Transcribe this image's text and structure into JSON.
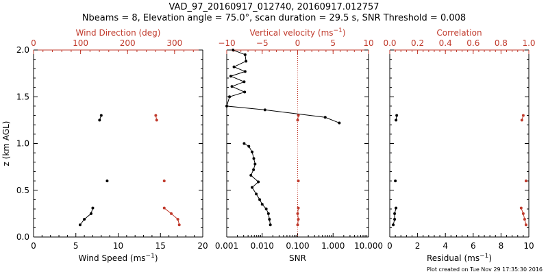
{
  "header": {
    "title": "VAD_97_20160917_012740, 20160917.012757",
    "subtitle": "Nbeams = 8, Elevation angle = 75.0°, scan duration = 29.5 s, SNR Threshold = 0.008"
  },
  "footer": {
    "created": "Plot created on Tue Nov 29 17:35:30 2016"
  },
  "colors": {
    "primary": "#000000",
    "secondary": "#c0392b"
  },
  "chart_data": [
    {
      "type": "scatter",
      "ylabel": "z (km AGL)",
      "ylim": [
        0,
        2
      ],
      "yticks": [
        "0.0",
        "0.5",
        "1.0",
        "1.5",
        "2.0"
      ],
      "bottom_axis": {
        "label": "Wind Speed (ms",
        "label_sup": "−1",
        "label_end": ")",
        "lim": [
          0,
          20
        ],
        "ticks": [
          "0",
          "5",
          "10",
          "15",
          "20"
        ]
      },
      "top_axis": {
        "label": "Wind Direction (deg)",
        "lim": [
          0,
          360
        ],
        "ticks": [
          "0",
          "100",
          "200",
          "300"
        ]
      },
      "series": [
        {
          "axis": "bottom",
          "points": [
            [
              5.5,
              0.13
            ],
            [
              6.0,
              0.19
            ],
            [
              6.8,
              0.25
            ],
            [
              7.0,
              0.31
            ],
            [
              8.7,
              0.6
            ],
            [
              7.8,
              1.25
            ],
            [
              8.0,
              1.3
            ]
          ],
          "segments": [
            [
              0,
              3
            ],
            [
              5,
              6
            ]
          ]
        },
        {
          "axis": "top",
          "points": [
            [
              310,
              0.13
            ],
            [
              307,
              0.19
            ],
            [
              293,
              0.25
            ],
            [
              278,
              0.31
            ],
            [
              278,
              0.6
            ],
            [
              262,
              1.25
            ],
            [
              260,
              1.3
            ]
          ],
          "segments": [
            [
              0,
              3
            ],
            [
              5,
              6
            ]
          ]
        }
      ]
    },
    {
      "type": "line",
      "ylim": [
        0,
        2
      ],
      "bottom_axis": {
        "label": "SNR",
        "scale": "log",
        "lim": [
          0.001,
          10
        ],
        "ticks": [
          "0.001",
          "0.010",
          "0.100",
          "1.000",
          "10.000"
        ]
      },
      "top_axis": {
        "label": "Vertical velocity (ms",
        "label_sup": "−1",
        "label_end": ")",
        "lim": [
          -10,
          10
        ],
        "ticks": [
          "−10",
          "−5",
          "0",
          "5",
          "10"
        ]
      },
      "reference_line": {
        "axis": "top",
        "value": 0,
        "style": "dotted"
      },
      "series": [
        {
          "axis": "bottom",
          "points": [
            [
              0.0015,
              2.0
            ],
            [
              0.0033,
              1.95
            ],
            [
              0.0035,
              1.88
            ],
            [
              0.0016,
              1.82
            ],
            [
              0.0033,
              1.77
            ],
            [
              0.0013,
              1.72
            ],
            [
              0.0031,
              1.66
            ],
            [
              0.0014,
              1.61
            ],
            [
              0.0032,
              1.55
            ],
            [
              0.0012,
              1.5
            ],
            [
              0.001,
              1.4
            ],
            [
              0.012,
              1.36
            ],
            [
              0.6,
              1.28
            ],
            [
              1.5,
              1.22
            ],
            [
              0.0031,
              1.0
            ],
            [
              0.0042,
              0.97
            ],
            [
              0.0052,
              0.91
            ],
            [
              0.0058,
              0.84
            ],
            [
              0.0063,
              0.78
            ],
            [
              0.0057,
              0.72
            ],
            [
              0.0048,
              0.66
            ],
            [
              0.0078,
              0.59
            ],
            [
              0.0052,
              0.53
            ],
            [
              0.0068,
              0.46
            ],
            [
              0.0085,
              0.4
            ],
            [
              0.01,
              0.35
            ],
            [
              0.013,
              0.3
            ],
            [
              0.015,
              0.25
            ],
            [
              0.016,
              0.19
            ],
            [
              0.017,
              0.13
            ]
          ],
          "segments": [
            [
              0,
              13
            ],
            [
              14,
              29
            ]
          ]
        },
        {
          "axis": "top",
          "points": [
            [
              0.1,
              1.3
            ],
            [
              0.0,
              1.25
            ],
            [
              0.1,
              0.6
            ],
            [
              0.1,
              0.31
            ],
            [
              0.0,
              0.25
            ],
            [
              0.1,
              0.19
            ],
            [
              0.0,
              0.13
            ]
          ],
          "segments": [
            [
              0,
              1
            ],
            [
              3,
              6
            ]
          ]
        }
      ]
    },
    {
      "type": "scatter",
      "ylim": [
        0,
        2
      ],
      "bottom_axis": {
        "label": "Residual (ms",
        "label_sup": "−1",
        "label_end": ")",
        "lim": [
          0,
          10
        ],
        "ticks": [
          "0",
          "2",
          "4",
          "6",
          "8",
          "10"
        ]
      },
      "top_axis": {
        "label": "Correlation",
        "lim": [
          0,
          1
        ],
        "ticks": [
          "0.0",
          "0.2",
          "0.4",
          "0.6",
          "0.8",
          "1.0"
        ]
      },
      "series": [
        {
          "axis": "bottom",
          "points": [
            [
              0.25,
              0.13
            ],
            [
              0.35,
              0.19
            ],
            [
              0.35,
              0.25
            ],
            [
              0.45,
              0.31
            ],
            [
              0.4,
              0.6
            ],
            [
              0.45,
              1.25
            ],
            [
              0.5,
              1.3
            ]
          ],
          "segments": [
            [
              0,
              3
            ],
            [
              5,
              6
            ]
          ]
        },
        {
          "axis": "top",
          "points": [
            [
              0.98,
              0.13
            ],
            [
              0.97,
              0.19
            ],
            [
              0.96,
              0.25
            ],
            [
              0.945,
              0.31
            ],
            [
              0.98,
              0.6
            ],
            [
              0.95,
              1.25
            ],
            [
              0.96,
              1.3
            ]
          ],
          "segments": [
            [
              0,
              3
            ],
            [
              5,
              6
            ]
          ]
        }
      ]
    }
  ]
}
